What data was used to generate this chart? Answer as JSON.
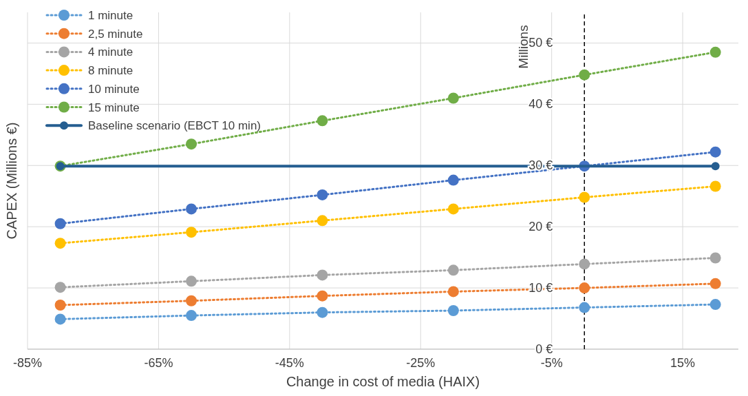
{
  "chart_data": {
    "type": "line",
    "xlabel": "Change in cost of media (HAIX)",
    "ylabel": "CAPEX (Millions €)",
    "annotations": [
      "Millions"
    ],
    "x": [
      -80,
      -60,
      -40,
      -20,
      0,
      20
    ],
    "xlim": [
      -85,
      23.5
    ],
    "xticks": [
      {
        "value": -85,
        "label": "-85%"
      },
      {
        "value": -65,
        "label": "-65%"
      },
      {
        "value": -45,
        "label": "-45%"
      },
      {
        "value": -25,
        "label": "-25%"
      },
      {
        "value": -5,
        "label": "-5%"
      },
      {
        "value": 15,
        "label": "15%"
      }
    ],
    "ylim": [
      0,
      55
    ],
    "yticks": [
      {
        "value": 0,
        "label": "0 €"
      },
      {
        "value": 10,
        "label": "10 €"
      },
      {
        "value": 20,
        "label": "20 €"
      },
      {
        "value": 30,
        "label": "30 €"
      },
      {
        "value": 40,
        "label": "40 €"
      },
      {
        "value": 50,
        "label": "50 €"
      }
    ],
    "grid": true,
    "legend": "top left",
    "marker": "circle",
    "ref_lines": [
      {
        "axis": "x",
        "value": 0,
        "color": "#000000",
        "line_style": "dashed"
      }
    ],
    "series": [
      {
        "name": "1 minute",
        "color": "#5b9bd5",
        "line_style": "dotted",
        "values": [
          4.9,
          5.5,
          6.0,
          6.3,
          6.8,
          7.3
        ]
      },
      {
        "name": "2,5 minute",
        "color": "#ed7d31",
        "line_style": "dotted",
        "values": [
          7.2,
          7.9,
          8.7,
          9.4,
          10.0,
          10.7
        ]
      },
      {
        "name": "4 minute",
        "color": "#a5a5a5",
        "line_style": "dotted",
        "values": [
          10.1,
          11.1,
          12.1,
          12.9,
          13.9,
          14.9
        ]
      },
      {
        "name": "8 minute",
        "color": "#ffc000",
        "line_style": "dotted",
        "values": [
          17.3,
          19.1,
          21.0,
          22.9,
          24.8,
          26.6
        ]
      },
      {
        "name": "10 minute",
        "color": "#4472c4",
        "line_style": "dotted",
        "values": [
          20.5,
          22.9,
          25.2,
          27.6,
          29.9,
          32.2
        ]
      },
      {
        "name": "15 minute",
        "color": "#70ad47",
        "line_style": "dotted",
        "values": [
          29.9,
          33.5,
          37.3,
          41.0,
          44.8,
          48.5
        ]
      },
      {
        "name": "Baseline scenario (EBCT 10 min)",
        "color": "#255e91",
        "line_style": "solid",
        "x": [
          -80,
          20
        ],
        "values": [
          29.9,
          29.9
        ]
      }
    ]
  }
}
